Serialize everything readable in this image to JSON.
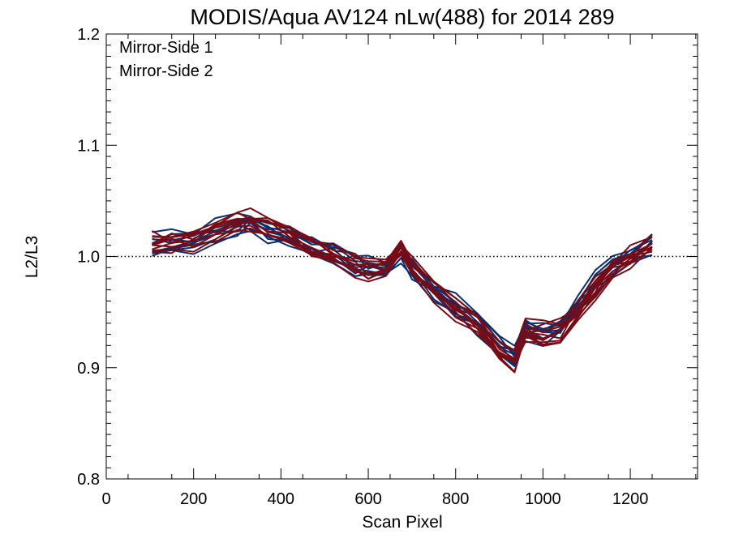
{
  "chart_data": {
    "type": "line",
    "title": "MODIS/Aqua AV124 nLw(488) for 2014 289",
    "xlabel": "Scan Pixel",
    "ylabel": "L2/L3",
    "xlim": [
      0,
      1354
    ],
    "ylim": [
      0.8,
      1.2
    ],
    "xticks": [
      0,
      200,
      400,
      600,
      800,
      1000,
      1200
    ],
    "xtick_labels": [
      "0",
      "200",
      "400",
      "600",
      "800",
      "1000",
      "1200"
    ],
    "yticks": [
      0.8,
      0.9,
      1.0,
      1.1,
      1.2
    ],
    "ytick_labels": [
      "0.8",
      "0.9",
      "1.0",
      "1.1",
      "1.2"
    ],
    "reference_line": {
      "y": 1.0,
      "style": "dotted"
    },
    "grid": false,
    "legend_position": "top-left",
    "colors": {
      "mirror_side_1": "#0b2f6e",
      "mirror_side_2": "#7a0a14"
    },
    "x": [
      105,
      150,
      200,
      250,
      300,
      330,
      370,
      420,
      470,
      520,
      570,
      600,
      640,
      675,
      700,
      750,
      800,
      850,
      900,
      935,
      960,
      1000,
      1040,
      1080,
      1120,
      1160,
      1200,
      1250
    ],
    "series": [
      {
        "name": "Mirror-Side 1",
        "color": "#0b2f6e",
        "count": 10,
        "values": [
          1.01,
          1.012,
          1.014,
          1.022,
          1.028,
          1.03,
          1.024,
          1.018,
          1.008,
          1.002,
          0.992,
          0.988,
          0.99,
          1.006,
          0.99,
          0.97,
          0.955,
          0.94,
          0.918,
          0.91,
          0.935,
          0.932,
          0.935,
          0.955,
          0.975,
          0.992,
          1.0,
          1.012
        ]
      },
      {
        "name": "Mirror-Side 2",
        "color": "#7a0a14",
        "count": 10,
        "values": [
          1.012,
          1.013,
          1.016,
          1.024,
          1.03,
          1.032,
          1.026,
          1.02,
          1.01,
          1.003,
          0.993,
          0.989,
          0.991,
          1.007,
          0.991,
          0.969,
          0.953,
          0.938,
          0.916,
          0.908,
          0.933,
          0.93,
          0.933,
          0.953,
          0.973,
          0.99,
          0.998,
          1.01
        ]
      }
    ]
  }
}
